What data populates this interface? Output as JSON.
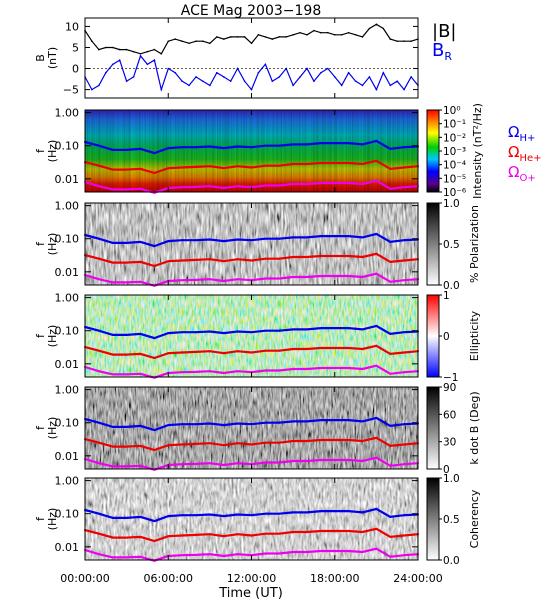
{
  "figure": {
    "title": "ACE Mag 2003−198",
    "xlabel": "Time (UT)",
    "xticklabels": [
      "00:00:00",
      "06:00:00",
      "12:00:00",
      "18:00:00",
      "24:00:00"
    ]
  },
  "chart_data": [
    {
      "type": "line",
      "panel": "magnetic-field",
      "ylabel": "B (nT)",
      "ylim": [
        -7,
        12
      ],
      "yticks": [
        -5,
        0,
        5,
        10
      ],
      "xlim": [
        0,
        24
      ],
      "x_unit": "hours UT",
      "legend": [
        "|B|",
        "B_R"
      ],
      "series": [
        {
          "name": "|B|",
          "color": "#000000",
          "x": [
            0,
            0.5,
            1,
            1.5,
            2,
            2.5,
            3,
            3.5,
            4,
            4.5,
            5,
            5.5,
            6,
            6.5,
            7,
            7.5,
            8,
            8.5,
            9,
            9.5,
            10,
            10.5,
            11,
            11.5,
            12,
            12.5,
            13,
            13.5,
            14,
            14.5,
            15,
            15.5,
            16,
            16.5,
            17,
            17.5,
            18,
            18.5,
            19,
            19.5,
            20,
            20.5,
            21,
            21.5,
            22,
            22.5,
            23,
            23.5,
            24
          ],
          "values": [
            9,
            6.5,
            4.5,
            5,
            5,
            4.5,
            4.5,
            4,
            3.5,
            4,
            4.5,
            3.5,
            6.5,
            7,
            6.5,
            6,
            6.5,
            6.5,
            6,
            7.5,
            7,
            7.5,
            7.5,
            7.5,
            6,
            8,
            7.5,
            7,
            7.5,
            7.5,
            8,
            8.5,
            8,
            9,
            8.5,
            8.5,
            8,
            8,
            8.5,
            8,
            7.5,
            9.5,
            10.5,
            9.5,
            7,
            6.5,
            6.5,
            6.5,
            7
          ]
        },
        {
          "name": "B_R",
          "color": "#0000ee",
          "x": [
            0,
            0.5,
            1,
            1.5,
            2,
            2.5,
            3,
            3.5,
            4,
            4.5,
            5,
            5.5,
            6,
            6.5,
            7,
            7.5,
            8,
            8.5,
            9,
            9.5,
            10,
            10.5,
            11,
            11.5,
            12,
            12.5,
            13,
            13.5,
            14,
            14.5,
            15,
            15.5,
            16,
            16.5,
            17,
            17.5,
            18,
            18.5,
            19,
            19.5,
            20,
            20.5,
            21,
            21.5,
            22,
            22.5,
            23,
            23.5,
            24
          ],
          "values": [
            -2,
            -5,
            -4,
            -1,
            1,
            2,
            -3,
            -2,
            3,
            1,
            2,
            -5,
            0,
            -1,
            -3,
            -4,
            -2,
            -3,
            -4,
            -1,
            -2,
            -3,
            0,
            -3,
            -5,
            -1,
            1,
            -3,
            -2,
            0,
            -4,
            -2,
            0,
            -3,
            -1,
            0,
            -2,
            -4,
            -1,
            -3,
            -4,
            -2,
            -5,
            -1,
            -4,
            -3,
            -5,
            -2,
            -4
          ]
        }
      ]
    },
    {
      "type": "heatmap",
      "panel": "intensity",
      "ylabel": "f (Hz)",
      "yscale": "log",
      "ylim": [
        0.004,
        1.2
      ],
      "yticklabels": [
        "1.00",
        "0.10",
        "0.01"
      ],
      "colorbar": {
        "label": "Intensity (nT²/Hz)",
        "ticks": [
          "10⁰",
          "10⁻¹",
          "10⁻²",
          "10⁻³",
          "10⁻⁴",
          "10⁻⁵",
          "10⁻⁶"
        ],
        "scale": "log",
        "colormap": "rainbow"
      },
      "overlay_legend": [
        "ΩH+",
        "ΩHe+",
        "ΩO+"
      ]
    },
    {
      "type": "heatmap",
      "panel": "polarization",
      "ylabel": "f (Hz)",
      "yscale": "log",
      "yticklabels": [
        "1.00",
        "0.10",
        "0.01"
      ],
      "colorbar": {
        "label": "% Polarization",
        "ticks": [
          "0.0",
          "0.5",
          "1.0"
        ],
        "range": [
          0,
          1
        ],
        "colormap": "greyscale"
      }
    },
    {
      "type": "heatmap",
      "panel": "ellipticity",
      "ylabel": "f (Hz)",
      "yscale": "log",
      "yticklabels": [
        "1.00",
        "0.10",
        "0.01"
      ],
      "colorbar": {
        "label": "Ellipticity",
        "ticks": [
          "−1",
          "0",
          "1"
        ],
        "range": [
          -1,
          1
        ],
        "colormap": "blue-white-red"
      }
    },
    {
      "type": "heatmap",
      "panel": "k-dot-b",
      "ylabel": "f (Hz)",
      "yscale": "log",
      "yticklabels": [
        "1.00",
        "0.10",
        "0.01"
      ],
      "colorbar": {
        "label": "k dot B (Deg)",
        "ticks": [
          "0",
          "30",
          "60",
          "90"
        ],
        "range": [
          0,
          90
        ],
        "colormap": "greyscale"
      }
    },
    {
      "type": "heatmap",
      "panel": "coherency",
      "ylabel": "f (Hz)",
      "yscale": "log",
      "yticklabels": [
        "1.00",
        "0.10",
        "0.01"
      ],
      "colorbar": {
        "label": "Coherency",
        "ticks": [
          "0.0",
          "0.5",
          "1.0"
        ],
        "range": [
          0,
          1
        ],
        "colormap": "greyscale"
      }
    },
    {
      "type": "line",
      "panel": "gyrofrequency-overlays",
      "note_series_drawn_on": [
        "intensity",
        "polarization",
        "ellipticity",
        "k-dot-b",
        "coherency"
      ],
      "xlim": [
        0,
        24
      ],
      "series": [
        {
          "name": "ΩH+",
          "color": "#0000ee",
          "x": [
            0,
            1,
            2,
            3,
            4,
            5,
            6,
            7,
            8,
            9,
            10,
            11,
            12,
            13,
            14,
            15,
            16,
            17,
            18,
            19,
            20,
            21,
            22,
            23,
            24
          ],
          "values": [
            0.13,
            0.1,
            0.075,
            0.075,
            0.08,
            0.06,
            0.085,
            0.09,
            0.09,
            0.095,
            0.085,
            0.095,
            0.09,
            0.1,
            0.1,
            0.11,
            0.11,
            0.12,
            0.12,
            0.12,
            0.11,
            0.14,
            0.08,
            0.09,
            0.095
          ]
        },
        {
          "name": "ΩHe+",
          "color": "#ee0000",
          "x": [
            0,
            1,
            2,
            3,
            4,
            5,
            6,
            7,
            8,
            9,
            10,
            11,
            12,
            13,
            14,
            15,
            16,
            17,
            18,
            19,
            20,
            21,
            22,
            23,
            24
          ],
          "values": [
            0.032,
            0.025,
            0.019,
            0.019,
            0.02,
            0.015,
            0.021,
            0.022,
            0.023,
            0.024,
            0.021,
            0.024,
            0.022,
            0.025,
            0.025,
            0.028,
            0.028,
            0.03,
            0.03,
            0.03,
            0.028,
            0.035,
            0.02,
            0.022,
            0.024
          ]
        },
        {
          "name": "ΩO+",
          "color": "#ee00ee",
          "x": [
            0,
            1,
            2,
            3,
            4,
            5,
            6,
            7,
            8,
            9,
            10,
            11,
            12,
            13,
            14,
            15,
            16,
            17,
            18,
            19,
            20,
            21,
            22,
            23,
            24
          ],
          "values": [
            0.008,
            0.006,
            0.0048,
            0.0048,
            0.005,
            0.0038,
            0.0053,
            0.0056,
            0.0057,
            0.006,
            0.0053,
            0.006,
            0.0056,
            0.0063,
            0.0063,
            0.007,
            0.007,
            0.0075,
            0.0075,
            0.0075,
            0.007,
            0.0088,
            0.005,
            0.0056,
            0.006
          ]
        }
      ]
    }
  ]
}
